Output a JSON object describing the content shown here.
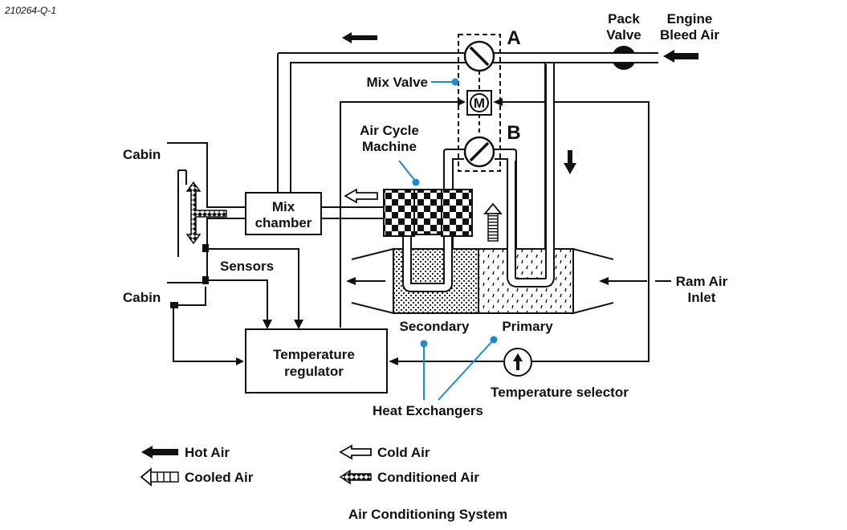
{
  "reference": "210264-Q-1",
  "title": "Air Conditioning System",
  "labels": {
    "pack_valve": [
      "Pack",
      "Valve"
    ],
    "engine_bleed_air": [
      "Engine",
      "Bleed Air"
    ],
    "valve_a": "A",
    "valve_b": "B",
    "mix_valve": "Mix Valve",
    "motor": "M",
    "air_cycle_machine": [
      "Air Cycle",
      "Machine"
    ],
    "cabin_top": "Cabin",
    "cabin_bottom": "Cabin",
    "mix_chamber": [
      "Mix",
      "chamber"
    ],
    "sensors": "Sensors",
    "temperature_regulator": [
      "Temperature",
      "regulator"
    ],
    "secondary": "Secondary",
    "primary": "Primary",
    "heat_exchangers": "Heat Exchangers",
    "temperature_selector": "Temperature selector",
    "ram_air_inlet": [
      "Ram Air",
      "Inlet"
    ]
  },
  "legend": [
    {
      "symbol": "hot-air-arrow",
      "label": "Hot Air"
    },
    {
      "symbol": "cold-air-arrow",
      "label": "Cold Air"
    },
    {
      "symbol": "cooled-air-arrow",
      "label": "Cooled Air"
    },
    {
      "symbol": "conditioned-air-arrow",
      "label": "Conditioned Air"
    }
  ],
  "colors": {
    "line": "#111111",
    "callout": "#1a8ad1"
  }
}
